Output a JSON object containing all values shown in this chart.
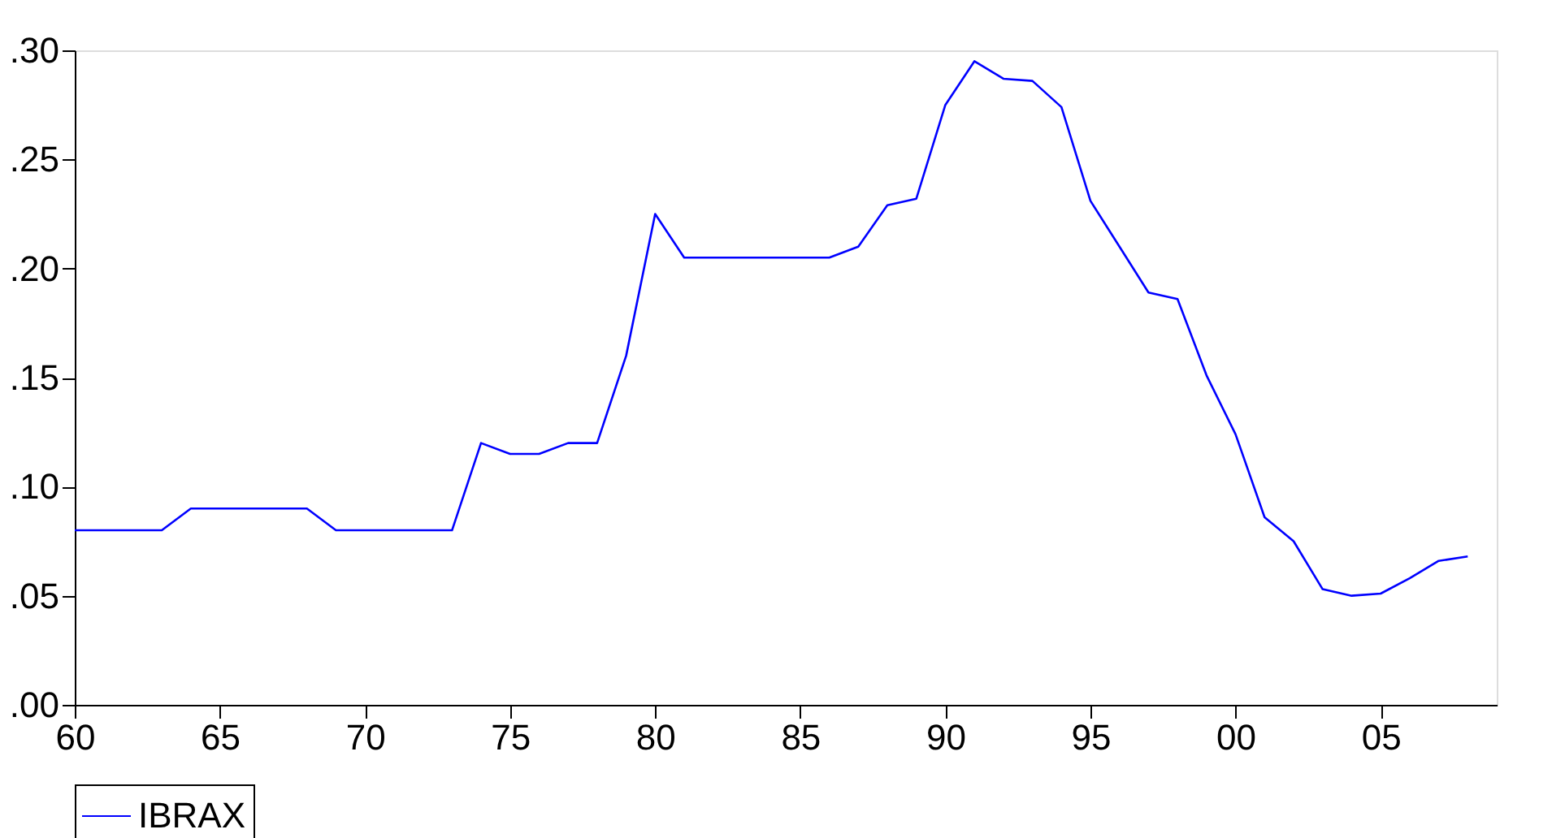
{
  "chart_data": {
    "type": "line",
    "x": [
      1960,
      1961,
      1962,
      1963,
      1964,
      1965,
      1966,
      1967,
      1968,
      1969,
      1970,
      1971,
      1972,
      1973,
      1974,
      1975,
      1976,
      1977,
      1978,
      1979,
      1980,
      1981,
      1982,
      1983,
      1984,
      1985,
      1986,
      1987,
      1988,
      1989,
      1990,
      1991,
      1992,
      1993,
      1994,
      1995,
      1996,
      1997,
      1998,
      1999,
      2000,
      2001,
      2002,
      2003,
      2004,
      2005,
      2006,
      2007,
      2008
    ],
    "series": [
      {
        "name": "IBRAX",
        "color": "#0000ff",
        "values": [
          0.08,
          0.08,
          0.08,
          0.08,
          0.09,
          0.09,
          0.09,
          0.09,
          0.09,
          0.08,
          0.08,
          0.08,
          0.08,
          0.08,
          0.12,
          0.115,
          0.115,
          0.12,
          0.12,
          0.16,
          0.225,
          0.205,
          0.205,
          0.205,
          0.205,
          0.205,
          0.205,
          0.21,
          0.229,
          0.232,
          0.275,
          0.295,
          0.287,
          0.286,
          0.274,
          0.231,
          0.21,
          0.189,
          0.186,
          0.151,
          0.124,
          0.086,
          0.075,
          0.053,
          0.05,
          0.051,
          0.058,
          0.066,
          0.068
        ]
      }
    ],
    "xlim": [
      1960,
      2009
    ],
    "xticks": [
      {
        "value": 1960,
        "label": "60"
      },
      {
        "value": 1965,
        "label": "65"
      },
      {
        "value": 1970,
        "label": "70"
      },
      {
        "value": 1975,
        "label": "75"
      },
      {
        "value": 1980,
        "label": "80"
      },
      {
        "value": 1985,
        "label": "85"
      },
      {
        "value": 1990,
        "label": "90"
      },
      {
        "value": 1995,
        "label": "95"
      },
      {
        "value": 2000,
        "label": "00"
      },
      {
        "value": 2005,
        "label": "05"
      }
    ],
    "ylim": [
      0,
      0.3
    ],
    "yticks": [
      {
        "value": 0,
        "label": ".00"
      },
      {
        "value": 0.05,
        "label": ".05"
      },
      {
        "value": 0.1,
        "label": ".10"
      },
      {
        "value": 0.15,
        "label": ".15"
      },
      {
        "value": 0.2,
        "label": ".20"
      },
      {
        "value": 0.25,
        "label": ".25"
      },
      {
        "value": 0.3,
        "label": ".30"
      }
    ],
    "grid": false,
    "legend": "bottom",
    "marker": "none",
    "line_style": "solid"
  }
}
